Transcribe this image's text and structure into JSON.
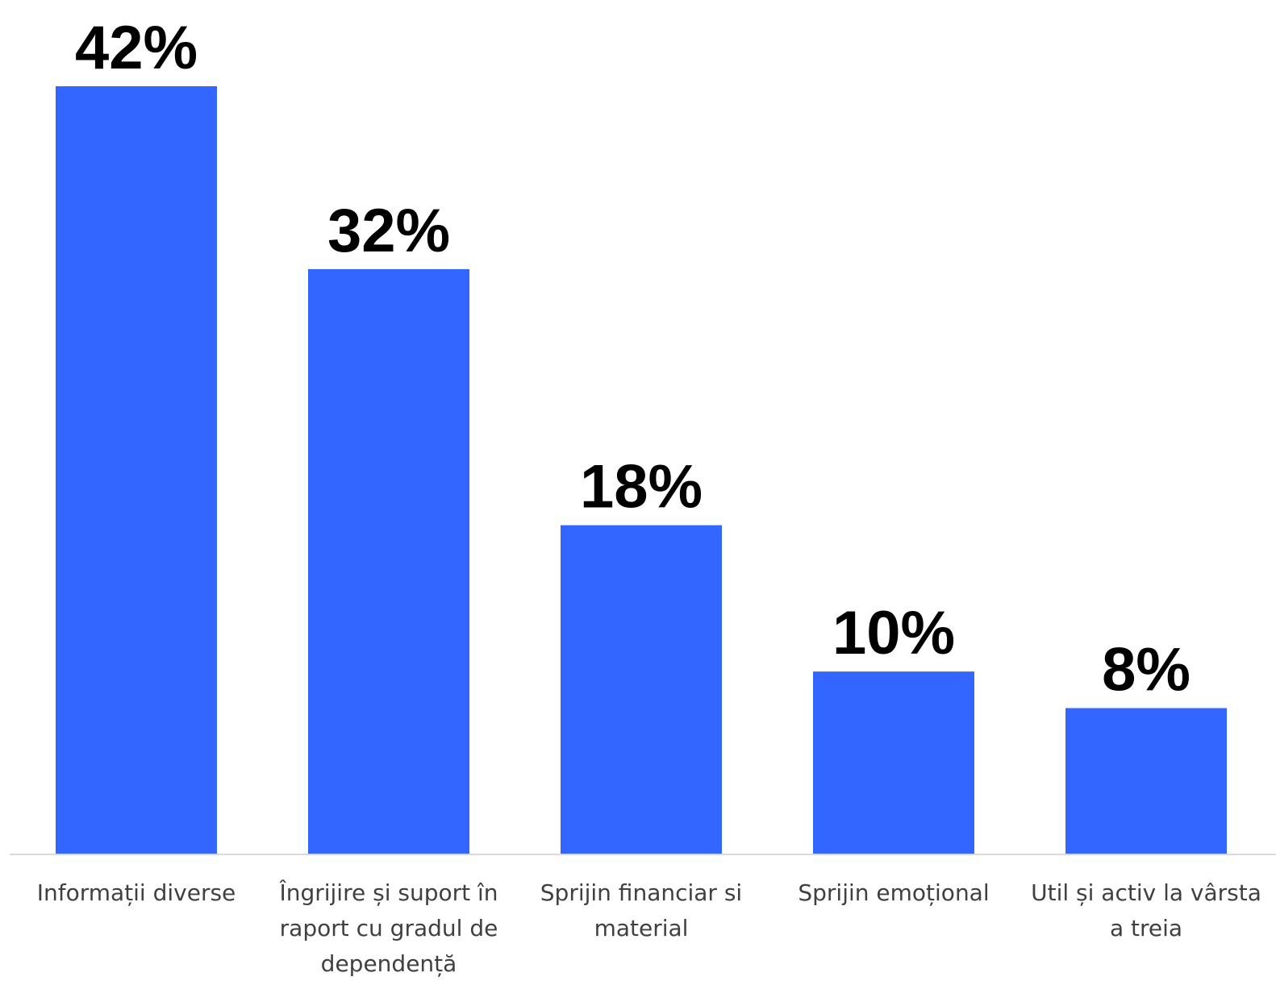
{
  "chart_data": {
    "type": "bar",
    "categories": [
      [
        "Informații diverse"
      ],
      [
        "Îngrijire și suport în",
        "raport cu gradul de",
        "dependență"
      ],
      [
        "Sprijin financiar si",
        "material"
      ],
      [
        "Sprijin emoțional"
      ],
      [
        "Util și activ la vârsta",
        "a treia"
      ]
    ],
    "values": [
      42,
      32,
      18,
      10,
      8
    ],
    "value_labels": [
      "42%",
      "32%",
      "18%",
      "10%",
      "8%"
    ],
    "unit": "%",
    "ylim": [
      0,
      42
    ],
    "grid": false,
    "legend": "none",
    "bar_color": "#3366ff",
    "axis_color": "#d9d9d9"
  }
}
